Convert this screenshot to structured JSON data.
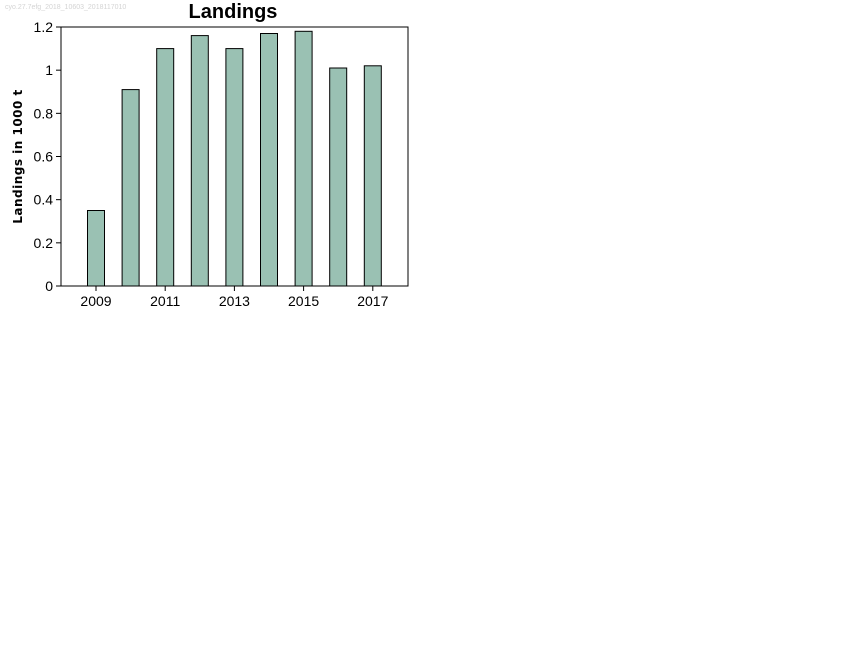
{
  "watermark": "cyo.27.7efg_2018_10603_2018117010",
  "chart_data": {
    "type": "bar",
    "title": "Landings",
    "xlabel": "",
    "ylabel": "Landings in 1000 t",
    "categories": [
      "2009",
      "2010",
      "2011",
      "2012",
      "2013",
      "2014",
      "2015",
      "2016",
      "2017"
    ],
    "values": [
      0.35,
      0.91,
      1.1,
      1.16,
      1.1,
      1.17,
      1.18,
      1.01,
      1.02
    ],
    "x_tick_labels": [
      "2009",
      "2011",
      "2013",
      "2015",
      "2017"
    ],
    "y_ticks": [
      "0",
      "0.2",
      "0.4",
      "0.6",
      "0.8",
      "1",
      "1.2"
    ],
    "ylim": [
      0,
      1.2
    ],
    "grid": false,
    "legend": "none",
    "bar_color": "#9ac1b3",
    "bar_edge_color": "#000000"
  }
}
